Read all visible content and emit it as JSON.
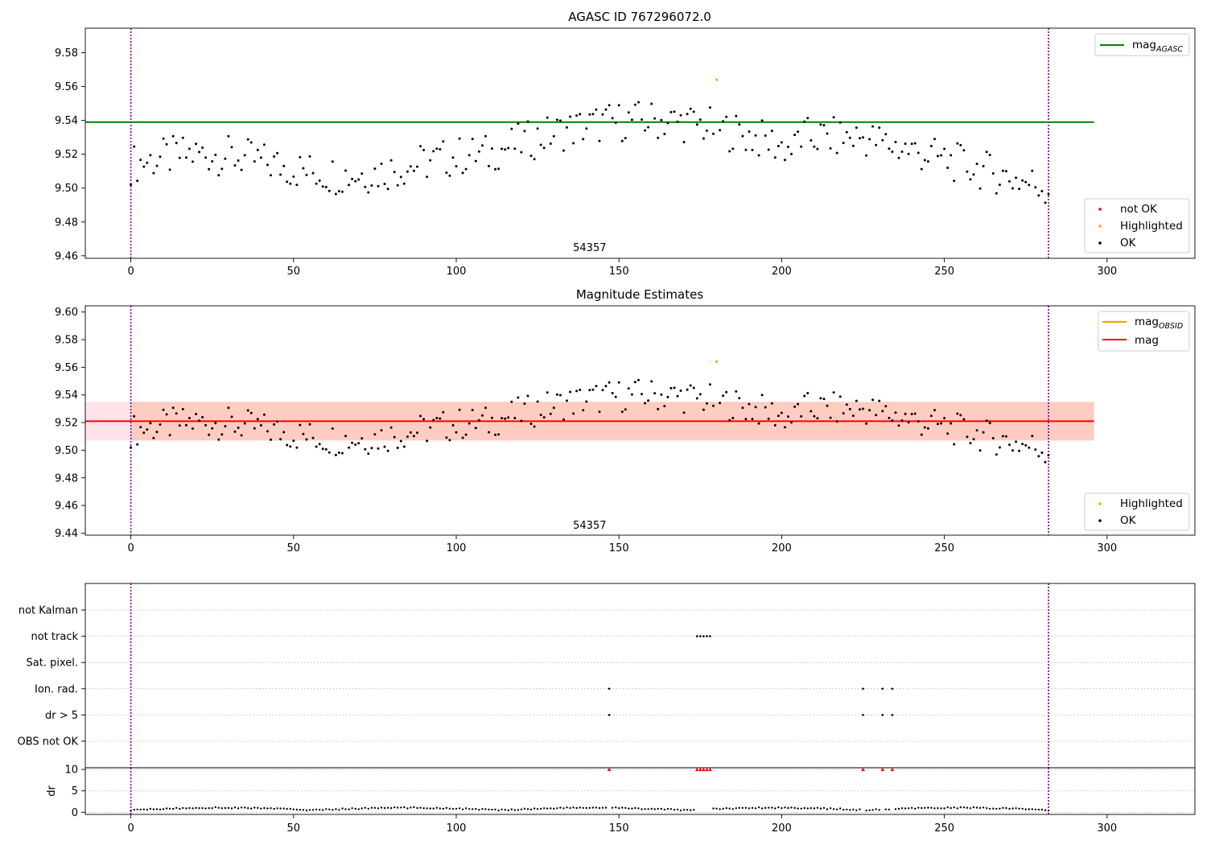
{
  "colors": {
    "ok": "#000000",
    "highlighted": "#ffa500",
    "not_ok": "#ff0000",
    "mag_agasc_line": "#008000",
    "mag_obsid_line": "#ffa500",
    "mag_line": "#ff0000",
    "band_outer": "#ffc0cb",
    "band_inner": "#ffa07a",
    "vline": "#800080",
    "grid": "#b0b0b0"
  },
  "chart_data": [
    {
      "type": "scatter",
      "title": "AGASC ID 767296072.0",
      "xlim": [
        -14,
        327
      ],
      "ylim": [
        9.4585,
        9.5945
      ],
      "xticks": [
        "0",
        "50",
        "100",
        "150",
        "200",
        "250",
        "300"
      ],
      "yticks": [
        "9.46",
        "9.48",
        "9.50",
        "9.52",
        "9.54",
        "9.56",
        "9.58"
      ],
      "annotation": {
        "text": "54357",
        "x": 141
      },
      "vlines": [
        0,
        282
      ],
      "hline": {
        "name": "mag",
        "subscript": "AGASC",
        "y": 9.539,
        "x": [
          -14,
          296
        ]
      },
      "legend_lines": [
        {
          "name": "mag",
          "subscript": "AGASC"
        }
      ],
      "legend_points": [
        "not OK",
        "Highlighted",
        "OK"
      ],
      "highlighted_points": [
        {
          "x": 180,
          "y": 9.564
        }
      ]
    },
    {
      "type": "scatter",
      "title": "Magnitude Estimates",
      "xlim": [
        -14,
        327
      ],
      "ylim": [
        9.4385,
        9.6045
      ],
      "xticks": [
        "0",
        "50",
        "100",
        "150",
        "200",
        "250",
        "300"
      ],
      "yticks": [
        "9.44",
        "9.46",
        "9.48",
        "9.50",
        "9.52",
        "9.54",
        "9.56",
        "9.58",
        "9.60"
      ],
      "annotation": {
        "text": "54357",
        "x": 141
      },
      "vlines": [
        0,
        282
      ],
      "hline": {
        "name": "mag",
        "y": 9.521,
        "x": [
          -14,
          296
        ]
      },
      "band_outer": [
        9.507,
        9.535
      ],
      "band_inner": {
        "y": [
          9.507,
          9.535
        ],
        "x": [
          0,
          296
        ]
      },
      "legend_lines": [
        {
          "name": "mag",
          "subscript": "OBSID"
        },
        {
          "name": "mag",
          "subscript": ""
        }
      ],
      "legend_points": [
        "Highlighted",
        "OK"
      ],
      "highlighted_points": [
        {
          "x": 180,
          "y": 9.564
        }
      ]
    },
    {
      "type": "scatter",
      "title": "",
      "xlim": [
        -14,
        327
      ],
      "categories": [
        "not Kalman",
        "not track",
        "Sat. pixel.",
        "Ion. rad.",
        "dr > 5",
        "OBS not OK"
      ],
      "xticks": [
        "0",
        "50",
        "100",
        "150",
        "200",
        "250",
        "300"
      ],
      "vlines": [
        0,
        282
      ],
      "flags": {
        "not Kalman": [],
        "not track": [
          174,
          175,
          176,
          177,
          178
        ],
        "Sat. pixel.": [],
        "Ion. rad.": [
          147,
          225,
          231,
          234
        ],
        "dr > 5": [
          147,
          225,
          231,
          234
        ],
        "OBS not OK": []
      }
    },
    {
      "type": "scatter",
      "ylabel": "dr",
      "xlim": [
        -14,
        327
      ],
      "ylim": [
        -0.5,
        10.4
      ],
      "yticks": [
        "0",
        "5",
        "10"
      ],
      "xticks": [
        "0",
        "50",
        "100",
        "150",
        "200",
        "250",
        "300"
      ],
      "vlines": [
        0,
        282
      ],
      "outlier_points": [
        147,
        174,
        175,
        176,
        177,
        178,
        225,
        231,
        234
      ]
    }
  ]
}
